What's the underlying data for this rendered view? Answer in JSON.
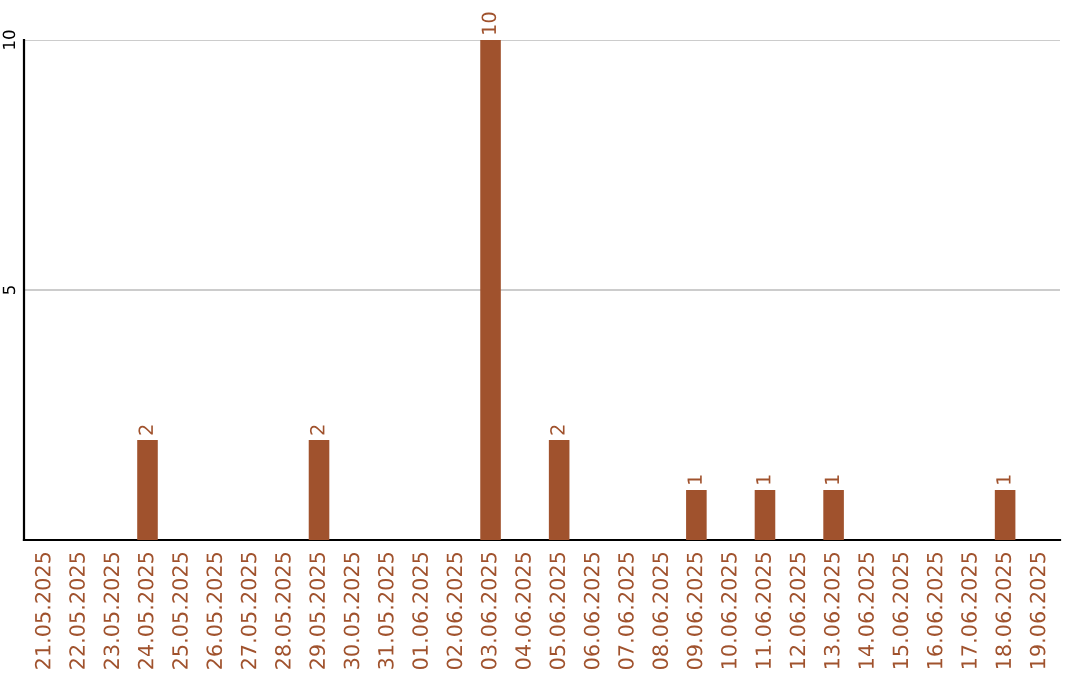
{
  "chart_data": {
    "type": "bar",
    "categories": [
      "21.05.2025",
      "22.05.2025",
      "23.05.2025",
      "24.05.2025",
      "25.05.2025",
      "26.05.2025",
      "27.05.2025",
      "28.05.2025",
      "29.05.2025",
      "30.05.2025",
      "31.05.2025",
      "01.06.2025",
      "02.06.2025",
      "03.06.2025",
      "04.06.2025",
      "05.06.2025",
      "06.06.2025",
      "07.06.2025",
      "08.06.2025",
      "09.06.2025",
      "10.06.2025",
      "11.06.2025",
      "12.06.2025",
      "13.06.2025",
      "14.06.2025",
      "15.06.2025",
      "16.06.2025",
      "17.06.2025",
      "18.06.2025",
      "19.06.2025"
    ],
    "values": [
      0,
      0,
      0,
      2,
      0,
      0,
      0,
      0,
      2,
      0,
      0,
      0,
      0,
      10,
      0,
      2,
      0,
      0,
      0,
      1,
      0,
      1,
      0,
      1,
      0,
      0,
      0,
      0,
      1,
      0
    ],
    "value_labels": [
      null,
      null,
      null,
      "2",
      null,
      null,
      null,
      null,
      "2",
      null,
      null,
      null,
      null,
      "10",
      null,
      "2",
      null,
      null,
      null,
      "1",
      null,
      "1",
      null,
      "1",
      null,
      null,
      null,
      null,
      "1",
      null
    ],
    "color": "#a0522d",
    "ylim": [
      0,
      10
    ],
    "yticks": [
      5,
      10
    ],
    "grid": "y"
  }
}
